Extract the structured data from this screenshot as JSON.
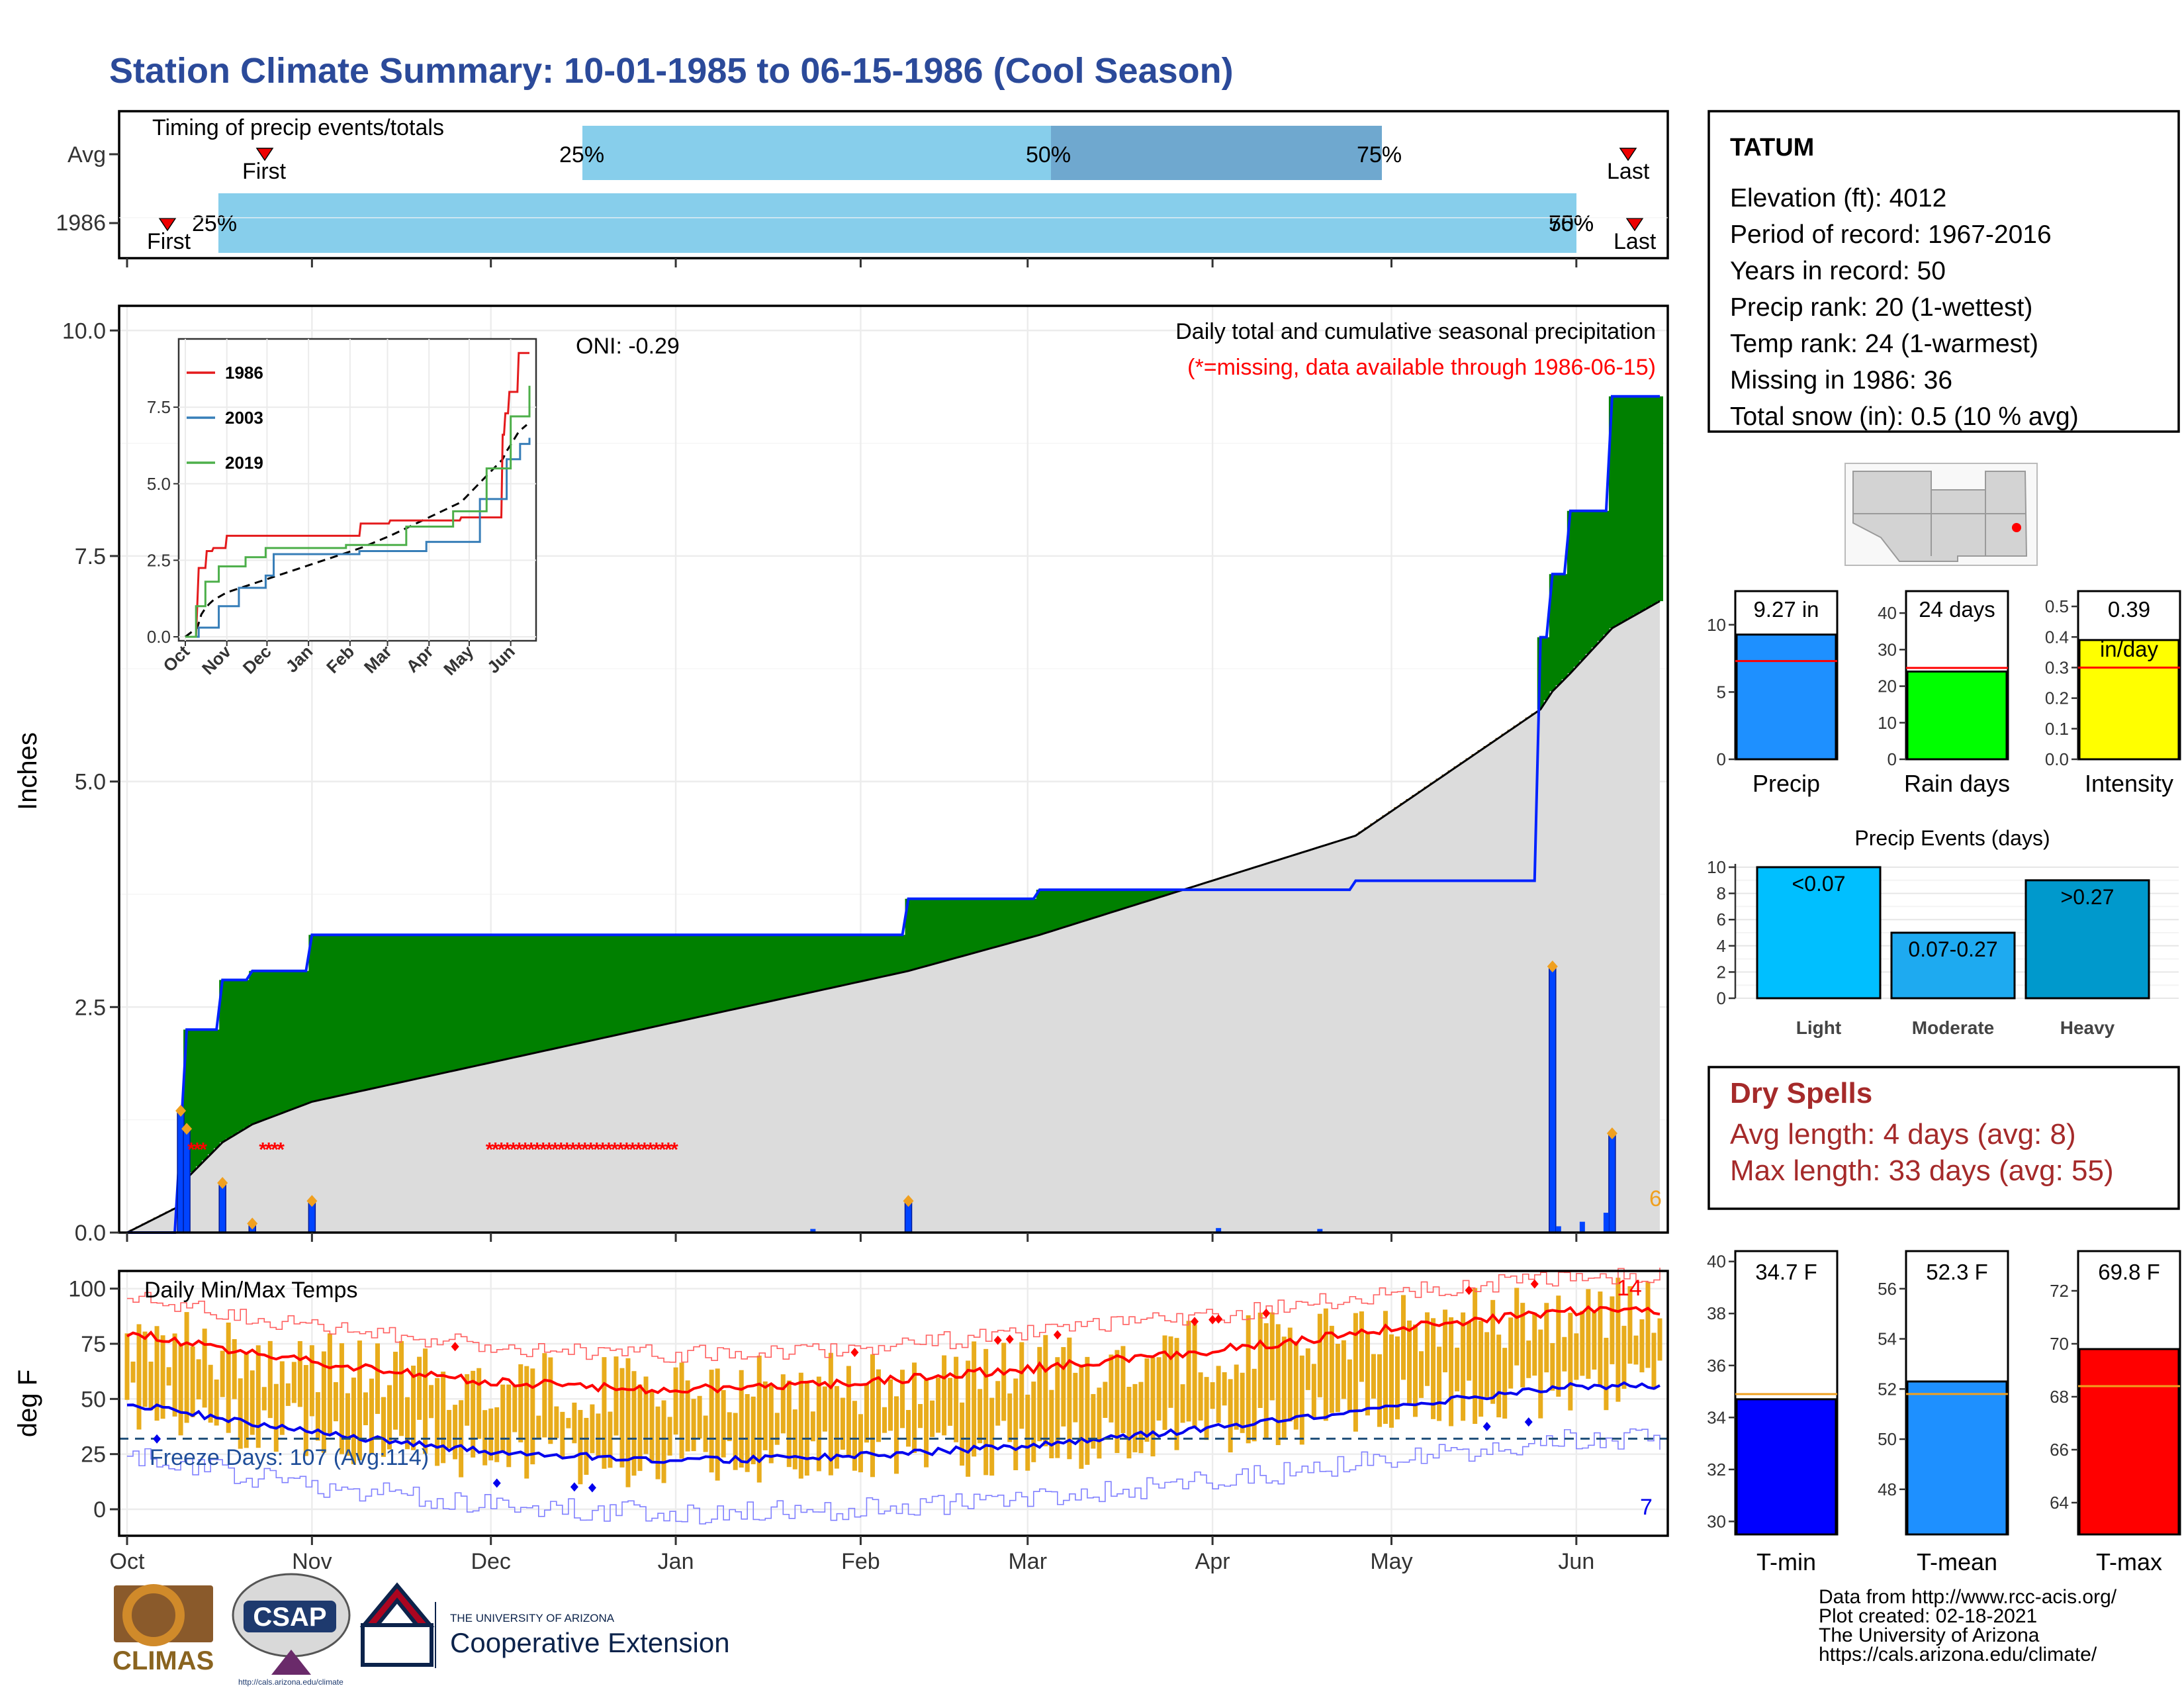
{
  "title": "Station Climate Summary: 10-01-1985 to 06-15-1986 (Cool Season)",
  "colors": {
    "title": "#2b4a9a",
    "quartile": "#87ceeb",
    "median": "#6fa8cf",
    "green": "#008000",
    "brown": "#8b5a00",
    "gray": "#dcdcdc",
    "blue": "#0022ff",
    "orange": "#e6a817",
    "red": "#ff0000"
  },
  "timing": {
    "caption": "Timing of precip events/totals",
    "rows": [
      "Avg",
      "1986"
    ],
    "avg": {
      "first_label": "First",
      "last_label": "Last",
      "q25": "25%",
      "q50": "50%",
      "q75": "75%"
    },
    "y1986": {
      "first_label": "First",
      "last_label": "Last",
      "q25": "25%",
      "q50": "50%",
      "q75": "75%"
    }
  },
  "months": [
    "Oct",
    "Nov",
    "Dec",
    "Jan",
    "Feb",
    "Mar",
    "Apr",
    "May",
    "Jun"
  ],
  "precip": {
    "ylabel": "Inches",
    "yticks": [
      "0.0",
      "2.5",
      "5.0",
      "7.5",
      "10.0"
    ],
    "oni": "ONI: -0.29",
    "subtitle": "Daily total and cumulative seasonal precipitation",
    "missing_note": "(*=missing, data available through 1986-06-15)",
    "count_label": "6"
  },
  "inset": {
    "yticks": [
      "0.0",
      "2.5",
      "5.0",
      "7.5"
    ],
    "months": [
      "Oct",
      "Nov",
      "Dec",
      "Jan",
      "Feb",
      "Mar",
      "Apr",
      "May",
      "Jun"
    ],
    "legend": [
      "1986",
      "2003",
      "2019"
    ],
    "legend_colors": [
      "#e41a1c",
      "#377eb8",
      "#4daf4a"
    ]
  },
  "temps": {
    "ylabel": "deg F",
    "caption": "Daily Min/Max Temps",
    "freeze": "Freeze Days: 107 (Avg:114)",
    "yticks": [
      "0",
      "25",
      "50",
      "75",
      "100"
    ],
    "hot_count": "14",
    "cold_count": "7"
  },
  "station": {
    "name": "TATUM",
    "lines": [
      "Elevation (ft): 4012",
      "Period of record: 1967-2016",
      "Years in record: 50",
      "Precip rank: 20 (1-wettest)",
      "Temp rank: 24 (1-warmest)",
      "Missing in 1986: 36",
      "Total snow (in): 0.5 (10 % avg)"
    ]
  },
  "mini_bars": [
    {
      "label": "Precip",
      "value_text": "9.27 in",
      "ticks": [
        "0",
        "5",
        "10"
      ]
    },
    {
      "label": "Rain days",
      "value_text": "24 days",
      "ticks": [
        "0",
        "10",
        "20",
        "30",
        "40"
      ]
    },
    {
      "label": "Intensity",
      "value_text": "0.39",
      "unit": "in/day",
      "ticks": [
        "0.0",
        "0.1",
        "0.2",
        "0.3",
        "0.4",
        "0.5"
      ]
    }
  ],
  "events": {
    "title": "Precip Events (days)",
    "ticks": [
      "0",
      "2",
      "4",
      "6",
      "8",
      "10"
    ],
    "categories": [
      "Light",
      "Moderate",
      "Heavy"
    ],
    "bar_labels": [
      "<0.07",
      "0.07-0.27",
      ">0.27"
    ]
  },
  "dry": {
    "title": "Dry Spells",
    "avg": "Avg length: 4 days (avg: 8)",
    "max": "Max length: 33 days (avg: 55)"
  },
  "temp_bars": [
    {
      "label": "T-min",
      "value_text": "34.7 F",
      "ticks": [
        "30",
        "32",
        "34",
        "36",
        "38",
        "40"
      ]
    },
    {
      "label": "T-mean",
      "value_text": "52.3 F",
      "ticks": [
        "48",
        "50",
        "52",
        "54",
        "56"
      ]
    },
    {
      "label": "T-max",
      "value_text": "69.8 F",
      "ticks": [
        "64",
        "66",
        "68",
        "70",
        "72"
      ]
    }
  ],
  "footer": [
    "Data from http://www.rcc-acis.org/",
    "Plot created: 02-18-2021",
    "The University of Arizona",
    "https://cals.arizona.edu/climate/"
  ],
  "logos": {
    "climas": "CLIMAS",
    "csap": "CSAP",
    "csap_url": "http://cals.arizona.edu/climate",
    "ua_top": "THE UNIVERSITY OF ARIZONA",
    "ua_bottom": "Cooperative Extension"
  },
  "chart_data": [
    {
      "type": "area",
      "title": "Daily total and cumulative seasonal precipitation",
      "ylabel": "Inches",
      "ylim": [
        0,
        10
      ],
      "x": [
        "1985-10-01",
        "1985-10-10",
        "1985-10-11",
        "1985-10-17",
        "1985-10-22",
        "1985-11-01",
        "1986-02-09",
        "1986-03-03",
        "1986-04-25",
        "1986-05-26",
        "1986-05-28",
        "1986-05-31",
        "1986-06-07",
        "1986-06-15"
      ],
      "series": [
        {
          "name": "1986",
          "values": [
            0,
            1.1,
            2.25,
            2.8,
            2.9,
            3.3,
            3.7,
            3.8,
            3.9,
            6.6,
            7.3,
            8.0,
            9.27,
            9.27
          ]
        }
      ],
      "avg_values": [
        0,
        0.3,
        0.6,
        1.0,
        1.2,
        1.45,
        2.9,
        3.3,
        4.4,
        5.8,
        6.0,
        6.2,
        6.7,
        7.0
      ],
      "daily_events": [
        {
          "date": "1985-10-10",
          "value": 1.35
        },
        {
          "date": "1985-10-11",
          "value": 1.15
        },
        {
          "date": "1985-10-17",
          "value": 0.55
        },
        {
          "date": "1985-10-22",
          "value": 0.1
        },
        {
          "date": "1985-11-01",
          "value": 0.35
        },
        {
          "date": "1986-02-09",
          "value": 0.35
        },
        {
          "date": "1986-05-28",
          "value": 2.95
        },
        {
          "date": "1986-06-07",
          "value": 1.1
        }
      ]
    },
    {
      "type": "line",
      "title": "Daily Min/Max Temps",
      "ylabel": "deg F",
      "ylim": [
        -10,
        110
      ],
      "categories": [
        "Oct",
        "Nov",
        "Dec",
        "Jan",
        "Feb",
        "Mar",
        "Apr",
        "May",
        "Jun"
      ],
      "series": [
        {
          "name": "avg max",
          "values": [
            80,
            67,
            58,
            54,
            57,
            64,
            72,
            82,
            90
          ]
        },
        {
          "name": "avg min",
          "values": [
            48,
            35,
            26,
            22,
            24,
            29,
            37,
            47,
            56
          ]
        }
      ]
    },
    {
      "type": "bar",
      "categories": [
        "Light",
        "Moderate",
        "Heavy"
      ],
      "values": [
        10,
        5,
        9
      ],
      "ylim": [
        0,
        10
      ]
    }
  ]
}
